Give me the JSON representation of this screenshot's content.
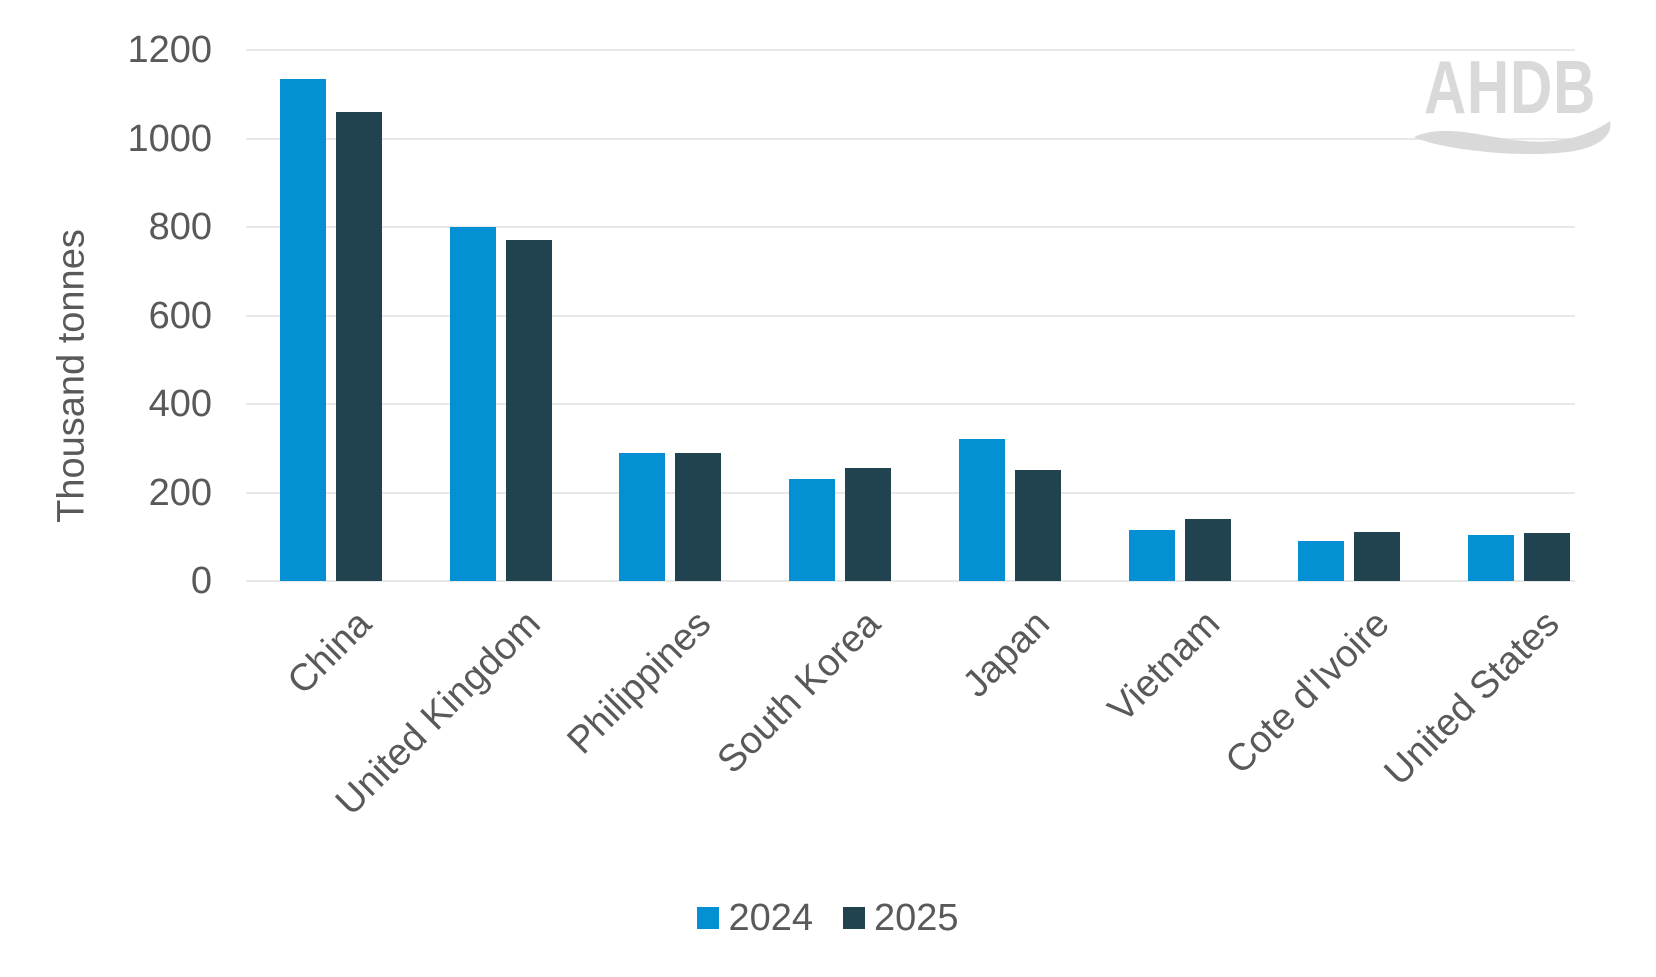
{
  "chart_data": {
    "type": "bar",
    "title": "",
    "ylabel": "Thousand tonnes",
    "xlabel": "",
    "ylim": [
      0,
      1200
    ],
    "yticks": [
      0,
      200,
      400,
      600,
      800,
      1000,
      1200
    ],
    "grid": "horizontal",
    "legend_position": "bottom-center",
    "categories": [
      "China",
      "United Kingdom",
      "Philippines",
      "South Korea",
      "Japan",
      "Vietnam",
      "Cote d'Ivoire",
      "United States"
    ],
    "series": [
      {
        "name": "2024",
        "color": "#0590d3",
        "values": [
          1135,
          800,
          290,
          230,
          320,
          115,
          90,
          105
        ]
      },
      {
        "name": "2025",
        "color": "#21424f",
        "values": [
          1060,
          770,
          290,
          255,
          250,
          140,
          110,
          108
        ]
      }
    ]
  },
  "branding": {
    "logo_text": "AHDB",
    "logo_color": "#d9d9d9"
  },
  "style": {
    "axis_text_color": "#595959",
    "gridline_color": "#e8e8e8",
    "background": "#ffffff"
  }
}
